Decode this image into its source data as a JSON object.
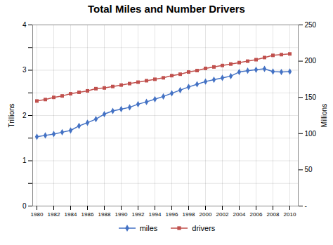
{
  "chart_data": {
    "type": "line",
    "title": "Total Miles and Number Drivers",
    "x": [
      1980,
      1981,
      1982,
      1983,
      1984,
      1985,
      1986,
      1987,
      1988,
      1989,
      1990,
      1991,
      1992,
      1993,
      1994,
      1995,
      1996,
      1997,
      1998,
      1999,
      2000,
      2001,
      2002,
      2003,
      2004,
      2005,
      2006,
      2007,
      2008,
      2009,
      2010
    ],
    "series": [
      {
        "name": "miles",
        "color": "#4472C4",
        "marker": "diamond",
        "values": [
          1.53,
          1.56,
          1.59,
          1.63,
          1.67,
          1.77,
          1.84,
          1.92,
          2.03,
          2.1,
          2.14,
          2.18,
          2.25,
          2.3,
          2.36,
          2.42,
          2.49,
          2.56,
          2.63,
          2.69,
          2.75,
          2.79,
          2.83,
          2.87,
          2.96,
          2.99,
          3.01,
          3.03,
          2.97,
          2.96,
          2.97
        ]
      },
      {
        "name": "drivers",
        "color": "#C0504D",
        "marker": "square",
        "axis": "y2",
        "values": [
          145,
          147,
          150,
          152,
          155,
          157,
          159,
          162,
          163,
          165,
          167,
          169,
          171,
          173,
          175,
          177,
          180,
          182,
          185,
          187,
          190,
          192,
          194,
          196,
          198,
          200,
          202,
          205,
          208,
          209,
          210
        ]
      }
    ],
    "y_label": "Trillions",
    "y2_label": "Millions",
    "xlim": [
      1979.5,
      2011
    ],
    "xticks": [
      1980,
      1982,
      1984,
      1986,
      1988,
      1990,
      1992,
      1994,
      1996,
      1998,
      2000,
      2002,
      2004,
      2006,
      2008,
      2010
    ],
    "ylim": [
      0,
      4
    ],
    "yticks": [
      0,
      {
        "value": 0.5,
        "label": ""
      },
      1,
      {
        "value": 1.5,
        "label": ""
      },
      2,
      {
        "value": 2.5,
        "label": ""
      },
      3,
      {
        "value": 3.5,
        "label": ""
      },
      4
    ],
    "y2lim": [
      0,
      250
    ],
    "y2ticks": [
      {
        "value": 0,
        "label": "-"
      },
      50,
      100,
      150,
      200,
      250
    ],
    "grid": true,
    "legend": "bottom"
  }
}
